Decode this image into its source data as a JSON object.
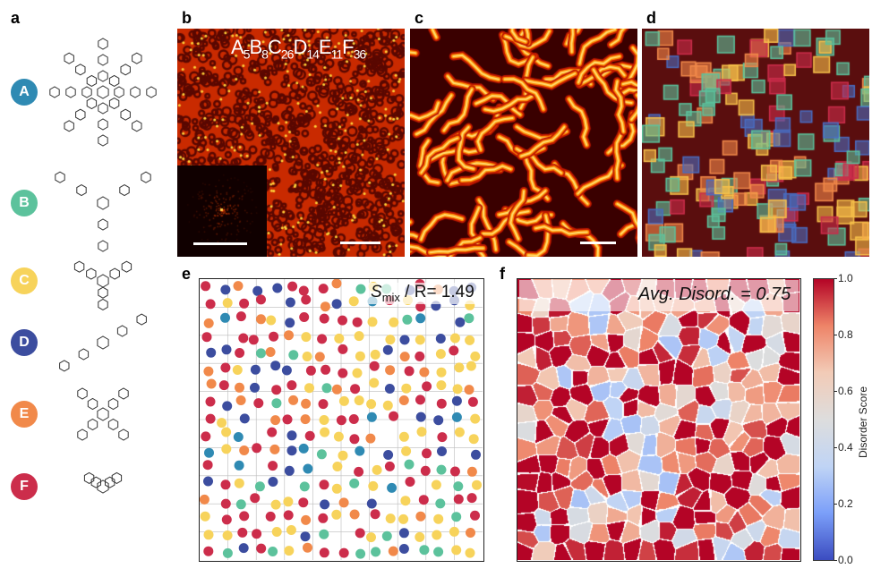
{
  "panel_labels": {
    "a": "a",
    "b": "b",
    "c": "c",
    "d": "d",
    "e": "e",
    "f": "f"
  },
  "compounds": [
    {
      "label": "A",
      "color": "#2f8ab3"
    },
    {
      "label": "B",
      "color": "#5cc29c"
    },
    {
      "label": "C",
      "color": "#f7d35b"
    },
    {
      "label": "D",
      "color": "#3c4d9f"
    },
    {
      "label": "E",
      "color": "#f1894a"
    },
    {
      "label": "F",
      "color": "#cc2d4b"
    }
  ],
  "panel_b": {
    "formula": [
      {
        "el": "A",
        "n": "5"
      },
      {
        "el": "B",
        "n": "8"
      },
      {
        "el": "C",
        "n": "26"
      },
      {
        "el": "D",
        "n": "14"
      },
      {
        "el": "E",
        "n": "11"
      },
      {
        "el": "F",
        "n": "36"
      }
    ]
  },
  "panel_e": {
    "symbol": "S",
    "subscript": "mix",
    "text": " / R= 1.49"
  },
  "panel_f": {
    "annotation": "Avg. Disord. = 0.75",
    "colorbar": {
      "label": "Disorder Score",
      "ticks": [
        "1.0",
        "0.8",
        "0.6",
        "0.4",
        "0.2",
        "0.0"
      ],
      "range": [
        0,
        1
      ],
      "colormap": "coolwarm"
    }
  }
}
